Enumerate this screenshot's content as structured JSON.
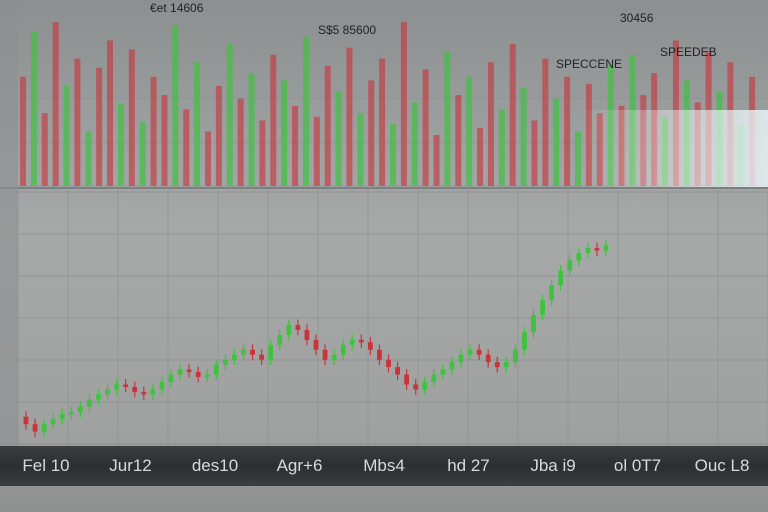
{
  "colors": {
    "up": "#3fc23f",
    "down": "#c8343a",
    "background": "#9fa1a1",
    "grid": "#8a8d8d",
    "axis_band": "#2e3233"
  },
  "top_labels": [
    "€et 14606",
    "S$5 85600",
    "30456",
    "SPECCENE",
    "SPEEDEB"
  ],
  "chart_data": {
    "type": "candlestick",
    "title": "",
    "xlabel": "",
    "ylabel": "",
    "grid": true,
    "legend": "none",
    "x_ticks": [
      "Fel 10",
      "Jur12",
      "des10",
      "Agr+6",
      "Mbs4",
      "hd 27",
      "Jba i9",
      "ol 0T7",
      "Ouc L8"
    ],
    "ylim": [
      0,
      100
    ],
    "close": [
      8,
      5,
      8,
      10,
      12,
      13,
      15,
      18,
      20,
      22,
      24,
      23,
      21,
      20,
      22,
      25,
      28,
      30,
      29,
      27,
      28,
      32,
      34,
      36,
      38,
      36,
      34,
      40,
      44,
      48,
      46,
      42,
      38,
      34,
      36,
      40,
      42,
      41,
      38,
      34,
      31,
      28,
      24,
      22,
      25,
      28,
      30,
      33,
      36,
      38,
      36,
      33,
      31,
      33,
      38,
      45,
      52,
      58,
      64,
      70,
      74,
      77,
      79,
      78,
      80
    ],
    "upper_panel": {
      "type": "bar",
      "values": [
        60,
        85,
        40,
        90,
        55,
        70,
        30,
        65,
        80,
        45,
        75,
        35,
        60,
        50,
        88,
        42,
        68,
        30,
        55,
        78,
        48,
        62,
        36,
        72,
        58,
        44,
        82,
        38,
        66,
        52,
        76,
        40,
        58,
        70,
        34,
        90,
        46,
        64,
        28,
        74,
        50,
        60,
        32,
        68,
        42,
        78,
        54,
        36,
        70,
        48,
        60,
        30,
        56,
        40,
        66,
        44,
        72,
        50,
        62,
        38,
        80,
        58,
        46,
        74,
        52,
        68,
        34,
        60
      ]
    }
  }
}
